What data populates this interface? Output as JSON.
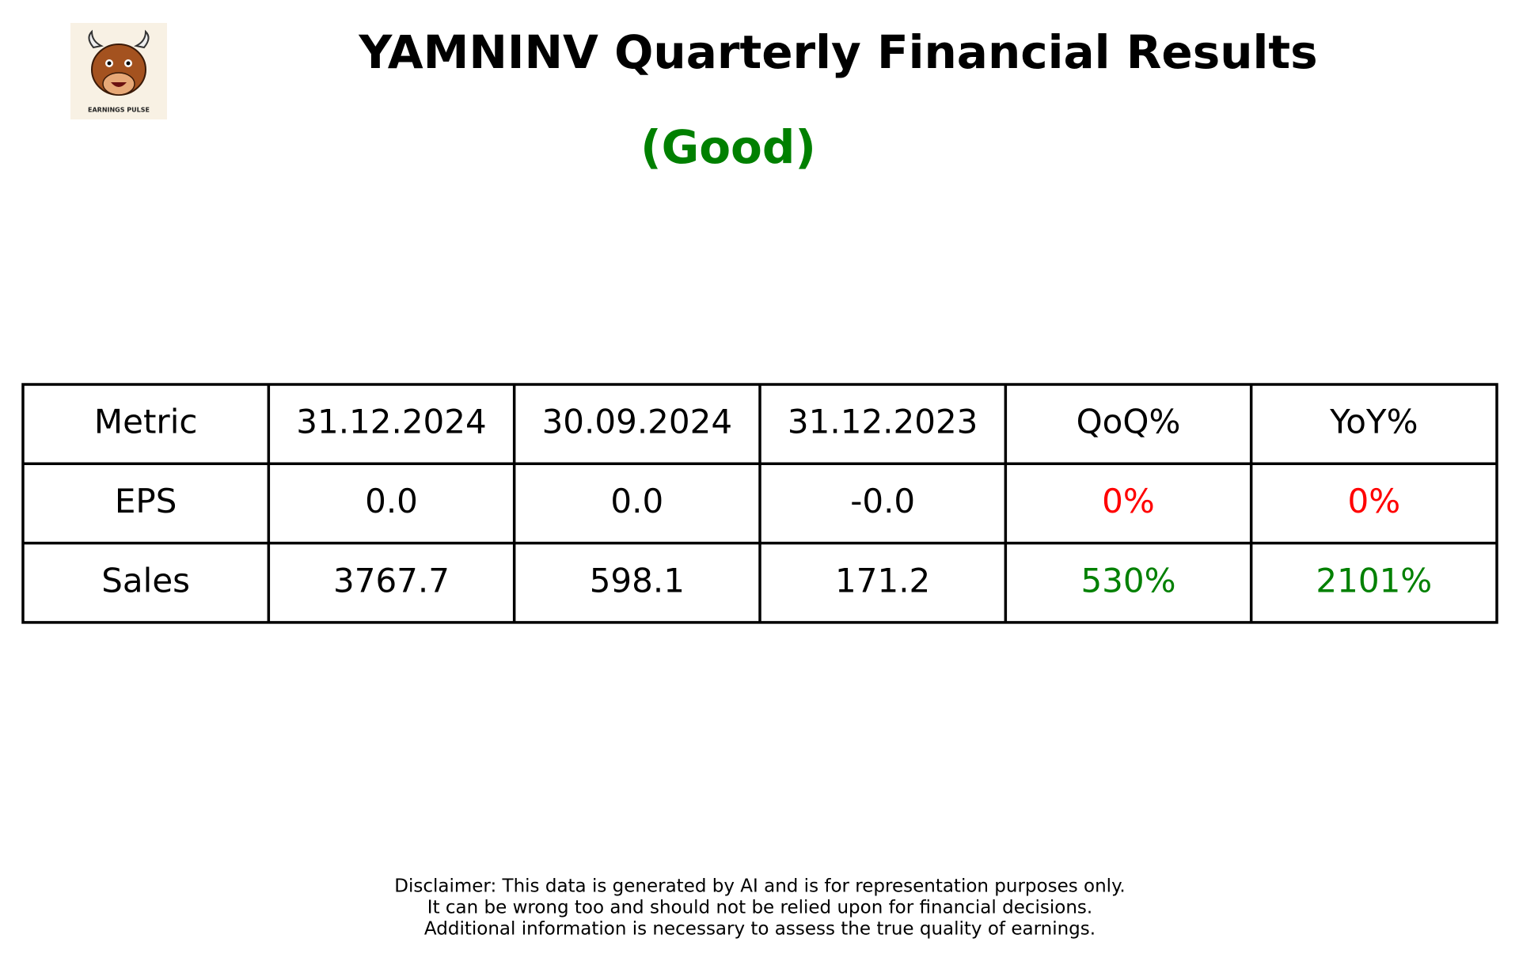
{
  "header": {
    "title": "YAMNINV Quarterly Financial Results",
    "rating": "(Good)",
    "logo_text": "EARNINGS PULSE"
  },
  "table": {
    "columns": [
      "Metric",
      "31.12.2024",
      "30.09.2024",
      "31.12.2023",
      "QoQ%",
      "YoY%"
    ],
    "rows": [
      [
        "EPS",
        "0.0",
        "0.0",
        "-0.0",
        "0%",
        "0%"
      ],
      [
        "Sales",
        "3767.7",
        "598.1",
        "171.2",
        "530%",
        "2101%"
      ]
    ]
  },
  "disclaimer": [
    "Disclaimer: This data is generated by AI and is for representation purposes only.",
    "It can be wrong too and should not be relied upon for financial decisions.",
    "Additional information is necessary to assess the true quality of earnings."
  ]
}
